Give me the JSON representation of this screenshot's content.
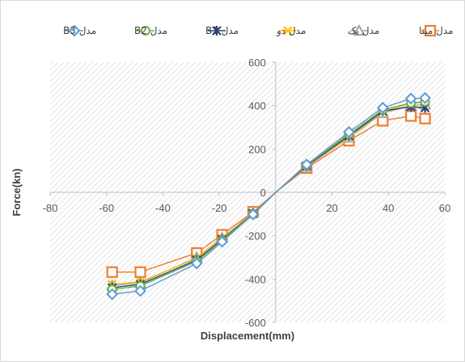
{
  "chart_data": {
    "type": "scatter",
    "xlabel": "Displacement(mm)",
    "ylabel": "Force(kn)",
    "xlim": [
      -80,
      60
    ],
    "ylim": [
      -600,
      600
    ],
    "x_ticks": [
      "-80",
      "-60",
      "-40",
      "-20",
      "0",
      "20",
      "40",
      "60"
    ],
    "y_ticks": [
      "-600",
      "-400",
      "-200",
      "0",
      "200",
      "400",
      "600"
    ],
    "grid": false,
    "background_pattern": "diagonal-hatch",
    "legend_position": "top",
    "series": [
      {
        "name": "مدل مبنا",
        "color": "#ED7D31",
        "marker": "square",
        "x": [
          -58,
          -48,
          -28,
          -19,
          -8,
          0,
          11,
          26,
          38,
          48,
          53
        ],
        "y": [
          -368,
          -368,
          -280,
          -196,
          -90,
          0,
          112,
          238,
          330,
          352,
          340
        ]
      },
      {
        "name": "مدل یک",
        "color": "#A5A5A5",
        "marker": "triangle",
        "x": [
          -58,
          -48,
          -28,
          -19,
          -8,
          0,
          11,
          26,
          38,
          48,
          53
        ],
        "y": [
          -430,
          -418,
          -300,
          -210,
          -95,
          0,
          118,
          252,
          365,
          400,
          405
        ]
      },
      {
        "name": "مدل دو",
        "color": "#FFC000",
        "marker": "x",
        "x": [
          -58,
          -48,
          -28,
          -19,
          -8,
          0,
          11,
          26,
          38,
          48,
          53
        ],
        "y": [
          -425,
          -412,
          -305,
          -212,
          -96,
          0,
          120,
          255,
          372,
          410,
          415
        ]
      },
      {
        "name": "مدل B1",
        "color": "#264478",
        "marker": "star",
        "x": [
          -58,
          -48,
          -28,
          -19,
          -8,
          0,
          11,
          26,
          38,
          48,
          53
        ],
        "y": [
          -440,
          -425,
          -312,
          -218,
          -98,
          0,
          122,
          260,
          375,
          395,
          390
        ]
      },
      {
        "name": "مدل B2",
        "color": "#70AD47",
        "marker": "circle",
        "x": [
          -58,
          -48,
          -28,
          -19,
          -8,
          0,
          11,
          26,
          38,
          48,
          53
        ],
        "y": [
          -448,
          -432,
          -318,
          -222,
          -100,
          0,
          125,
          268,
          380,
          412,
          418
        ]
      },
      {
        "name": "مدل B3",
        "color": "#5B9BD5",
        "marker": "diamond",
        "x": [
          -58,
          -48,
          -28,
          -19,
          -8,
          0,
          11,
          26,
          38,
          48,
          53
        ],
        "y": [
          -470,
          -455,
          -328,
          -228,
          -102,
          0,
          128,
          278,
          390,
          432,
          435
        ]
      }
    ]
  }
}
